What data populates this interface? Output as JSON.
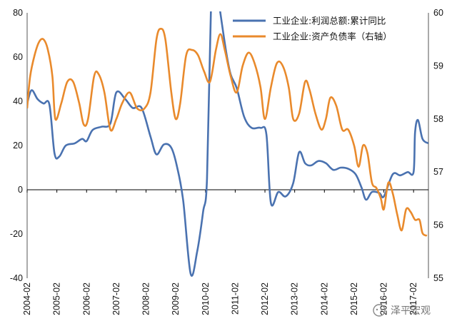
{
  "chart_data": {
    "type": "line",
    "title": "",
    "left_axis": {
      "ylim": [
        -40,
        80
      ],
      "ticks": [
        "-40",
        "-20",
        "0",
        "20",
        "40",
        "60",
        "80"
      ]
    },
    "right_axis": {
      "ylim": [
        55,
        60
      ],
      "ticks": [
        "55",
        "56",
        "57",
        "58",
        "59",
        "60"
      ]
    },
    "x_ticks": [
      "2004-02",
      "2005-02",
      "2006-02",
      "2007-02",
      "2008-02",
      "2009-02",
      "2010-02",
      "2011-02",
      "2012-02",
      "2013-02",
      "2014-02",
      "2015-02",
      "2016-02",
      "2017-02"
    ],
    "x_range": [
      2004.0,
      2017.5
    ],
    "legend_position": "top-right",
    "series": [
      {
        "name": "工业企业:利润总额:累计同比",
        "axis": "left",
        "color": "#4a72b0",
        "points": [
          [
            2004.0,
            39
          ],
          [
            2004.15,
            45
          ],
          [
            2004.35,
            41
          ],
          [
            2004.55,
            39
          ],
          [
            2004.75,
            38.5
          ],
          [
            2004.92,
            16.5
          ],
          [
            2005.08,
            15
          ],
          [
            2005.3,
            20
          ],
          [
            2005.6,
            21
          ],
          [
            2005.85,
            23
          ],
          [
            2006.0,
            22
          ],
          [
            2006.2,
            27
          ],
          [
            2006.5,
            28.5
          ],
          [
            2006.8,
            30
          ],
          [
            2007.0,
            44
          ],
          [
            2007.3,
            41
          ],
          [
            2007.55,
            37
          ],
          [
            2007.85,
            37
          ],
          [
            2008.15,
            24
          ],
          [
            2008.35,
            16
          ],
          [
            2008.6,
            20.5
          ],
          [
            2008.85,
            19
          ],
          [
            2009.05,
            10
          ],
          [
            2009.25,
            -5
          ],
          [
            2009.5,
            -38
          ],
          [
            2009.72,
            -28
          ],
          [
            2009.92,
            -10
          ],
          [
            2010.05,
            5
          ],
          [
            2010.18,
            80
          ],
          [
            2010.3,
            100
          ],
          [
            2010.5,
            80
          ],
          [
            2010.7,
            62
          ],
          [
            2010.85,
            52
          ],
          [
            2011.05,
            46
          ],
          [
            2011.3,
            33
          ],
          [
            2011.55,
            28
          ],
          [
            2011.85,
            28
          ],
          [
            2012.05,
            25
          ],
          [
            2012.2,
            -6
          ],
          [
            2012.45,
            -1
          ],
          [
            2012.7,
            -3
          ],
          [
            2012.95,
            3
          ],
          [
            2013.15,
            17
          ],
          [
            2013.35,
            12
          ],
          [
            2013.55,
            11
          ],
          [
            2013.8,
            13
          ],
          [
            2014.05,
            12
          ],
          [
            2014.3,
            9
          ],
          [
            2014.55,
            10
          ],
          [
            2014.8,
            9.5
          ],
          [
            2015.05,
            7
          ],
          [
            2015.25,
            1
          ],
          [
            2015.4,
            -4.5
          ],
          [
            2015.6,
            -1
          ],
          [
            2015.85,
            -1.5
          ],
          [
            2016.0,
            -3
          ],
          [
            2016.3,
            7
          ],
          [
            2016.55,
            6.5
          ],
          [
            2016.8,
            8
          ],
          [
            2017.0,
            8
          ],
          [
            2017.05,
            26
          ],
          [
            2017.15,
            31.5
          ],
          [
            2017.3,
            23
          ],
          [
            2017.5,
            21
          ]
        ]
      },
      {
        "name": "工业企业:资产负债率（右轴）",
        "axis": "right",
        "color": "#e98a2c",
        "points": [
          [
            2004.0,
            58.2
          ],
          [
            2004.1,
            58.8
          ],
          [
            2004.25,
            59.2
          ],
          [
            2004.4,
            59.45
          ],
          [
            2004.55,
            59.5
          ],
          [
            2004.7,
            59.3
          ],
          [
            2004.85,
            58.8
          ],
          [
            2004.95,
            58.0
          ],
          [
            2005.15,
            58.3
          ],
          [
            2005.35,
            58.7
          ],
          [
            2005.55,
            58.7
          ],
          [
            2005.75,
            58.3
          ],
          [
            2005.9,
            57.9
          ],
          [
            2006.05,
            58.0
          ],
          [
            2006.25,
            58.8
          ],
          [
            2006.4,
            58.85
          ],
          [
            2006.6,
            58.5
          ],
          [
            2006.8,
            57.8
          ],
          [
            2007.0,
            58.0
          ],
          [
            2007.2,
            58.3
          ],
          [
            2007.45,
            58.5
          ],
          [
            2007.7,
            58.2
          ],
          [
            2007.95,
            58.2
          ],
          [
            2008.15,
            58.5
          ],
          [
            2008.35,
            59.5
          ],
          [
            2008.5,
            59.7
          ],
          [
            2008.65,
            59.5
          ],
          [
            2008.85,
            58.5
          ],
          [
            2009.0,
            58.0
          ],
          [
            2009.15,
            58.3
          ],
          [
            2009.35,
            59.2
          ],
          [
            2009.55,
            59.3
          ],
          [
            2009.75,
            59.2
          ],
          [
            2009.95,
            58.9
          ],
          [
            2010.15,
            58.7
          ],
          [
            2010.35,
            59.3
          ],
          [
            2010.5,
            59.6
          ],
          [
            2010.65,
            59.3
          ],
          [
            2010.85,
            58.8
          ],
          [
            2011.05,
            58.5
          ],
          [
            2011.25,
            59.0
          ],
          [
            2011.45,
            59.25
          ],
          [
            2011.65,
            59.05
          ],
          [
            2011.85,
            58.6
          ],
          [
            2012.0,
            58.0
          ],
          [
            2012.2,
            58.6
          ],
          [
            2012.4,
            59.05
          ],
          [
            2012.6,
            59.0
          ],
          [
            2012.8,
            58.6
          ],
          [
            2012.95,
            58.0
          ],
          [
            2013.15,
            58.1
          ],
          [
            2013.35,
            58.7
          ],
          [
            2013.5,
            58.55
          ],
          [
            2013.7,
            58.1
          ],
          [
            2013.9,
            57.8
          ],
          [
            2014.05,
            58.0
          ],
          [
            2014.2,
            58.4
          ],
          [
            2014.4,
            58.25
          ],
          [
            2014.6,
            57.8
          ],
          [
            2014.8,
            57.8
          ],
          [
            2015.0,
            57.5
          ],
          [
            2015.15,
            57.1
          ],
          [
            2015.3,
            57.5
          ],
          [
            2015.45,
            57.35
          ],
          [
            2015.6,
            56.8
          ],
          [
            2015.75,
            56.7
          ],
          [
            2015.9,
            56.5
          ],
          [
            2016.0,
            56.3
          ],
          [
            2016.15,
            56.8
          ],
          [
            2016.3,
            56.6
          ],
          [
            2016.45,
            56.2
          ],
          [
            2016.6,
            55.9
          ],
          [
            2016.75,
            56.3
          ],
          [
            2016.9,
            56.25
          ],
          [
            2017.05,
            56.1
          ],
          [
            2017.2,
            56.1
          ],
          [
            2017.3,
            55.85
          ],
          [
            2017.45,
            55.8
          ]
        ]
      }
    ]
  },
  "watermark": {
    "icon": "wechat-icon",
    "text": "泽平宏观"
  }
}
